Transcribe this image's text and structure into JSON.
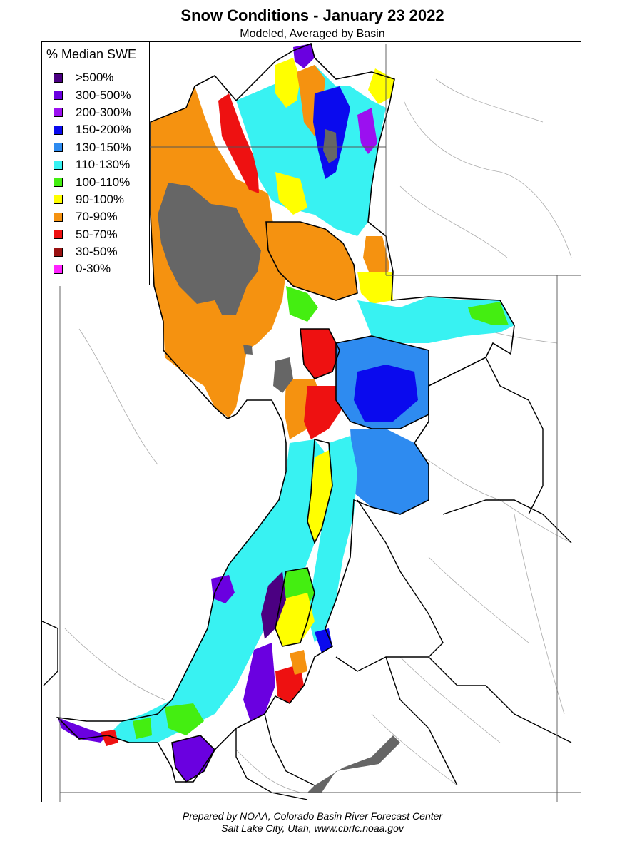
{
  "title": "Snow Conditions - January 23 2022",
  "subtitle": "Modeled, Averaged by Basin",
  "legend": {
    "title": "% Median SWE",
    "items": [
      {
        "label": ">500%",
        "color": "#4b0082"
      },
      {
        "label": "300-500%",
        "color": "#6a00e0"
      },
      {
        "label": "200-300%",
        "color": "#9b10f0"
      },
      {
        "label": "150-200%",
        "color": "#0a0aee"
      },
      {
        "label": "130-150%",
        "color": "#2e8bf0"
      },
      {
        "label": "110-130%",
        "color": "#38f2f2"
      },
      {
        "label": "100-110%",
        "color": "#44ee11"
      },
      {
        "label": "90-100%",
        "color": "#ffff00"
      },
      {
        "label": "70-90%",
        "color": "#f59210"
      },
      {
        "label": "50-70%",
        "color": "#ee1111"
      },
      {
        "label": "30-50%",
        "color": "#991111"
      },
      {
        "label": "0-30%",
        "color": "#ff22ff"
      }
    ]
  },
  "colors": {
    "lake": "#666666",
    "boundary": "#000000",
    "river": "#aaaaaa"
  },
  "footer": {
    "line1": "Prepared by NOAA, Colorado Basin River Forecast Center",
    "line2": "Salt Lake City, Utah, www.cbrfc.noaa.gov"
  }
}
